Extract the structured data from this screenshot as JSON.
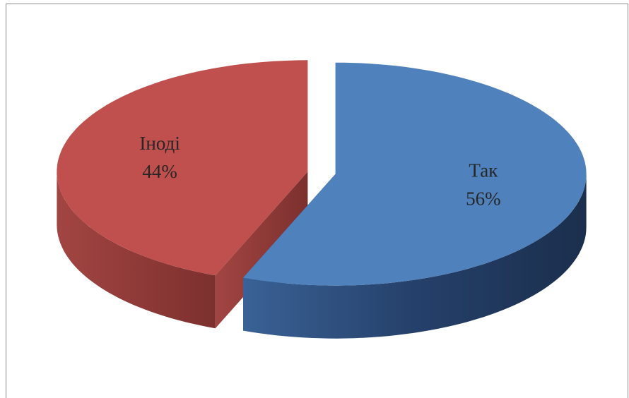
{
  "chart_data": {
    "type": "pie3d",
    "categories": [
      "Так",
      "Іноді"
    ],
    "values": [
      56,
      44
    ],
    "value_labels": [
      "56%",
      "44%"
    ],
    "colors": [
      "#4f81bd",
      "#c0504d"
    ]
  }
}
